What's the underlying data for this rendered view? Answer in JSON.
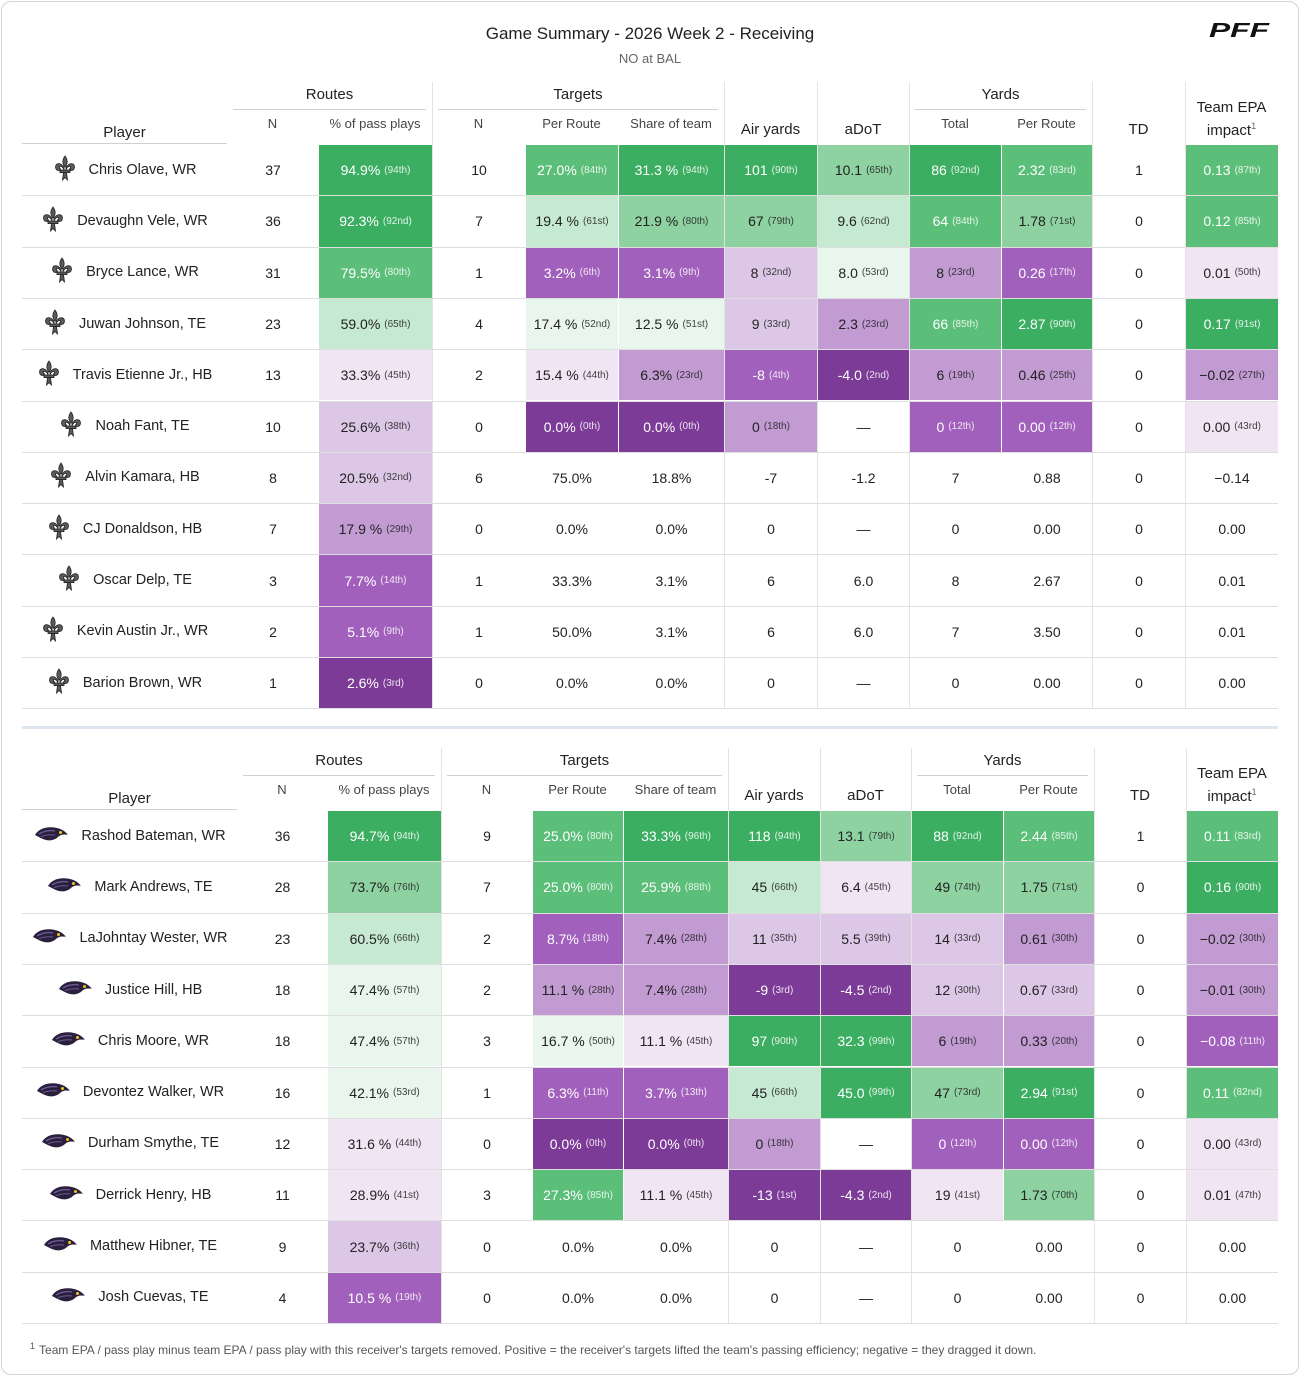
{
  "header": {
    "title": "Game Summary - 2026 Week 2 - Receiving",
    "subtitle": "NO at BAL",
    "logo_text": "PFF"
  },
  "columns": {
    "player": "Player",
    "routes_group": "Routes",
    "targets_group": "Targets",
    "yards_group": "Yards",
    "n": "N",
    "pct_pass_plays": "% of pass plays",
    "per_route": "Per Route",
    "share_of_team": "Share of team",
    "air_yards": "Air yards",
    "adot": "aDoT",
    "total": "Total",
    "td": "TD",
    "team_epa_line1": "Team EPA",
    "team_epa_line2": "impact",
    "footnote_mark": "1"
  },
  "colors": {
    "g5": "#3cae62",
    "g4": "#5bbe79",
    "g3": "#8ed2a1",
    "g2": "#c6e9d1",
    "g1": "#e9f6ed",
    "p1": "#efe5f3",
    "p2": "#dcc8e6",
    "p3": "#c29bd3",
    "p4": "#a160bb",
    "p5": "#7c3b97"
  },
  "teams": [
    {
      "logo": "fleur-de-lis-icon",
      "rows": [
        {
          "player": "Chris Olave, WR",
          "routes_n": "37",
          "routes_pct": "94.9%",
          "routes_pct_rank": "(94th)",
          "routes_pct_color": "g5",
          "targets_n": "10",
          "per_route": "27.0%",
          "per_route_rank": "(84th)",
          "per_route_color": "g4",
          "share": "31.3 %",
          "share_rank": "(94th)",
          "share_color": "g5",
          "air": "101",
          "air_rank": "(90th)",
          "air_color": "g5",
          "adot": "10.1",
          "adot_rank": "(65th)",
          "adot_color": "g3",
          "yds": "86",
          "yds_rank": "(92nd)",
          "yds_color": "g5",
          "ypr": "2.32",
          "ypr_rank": "(83rd)",
          "ypr_color": "g4",
          "td": "1",
          "epa": "0.13",
          "epa_rank": "(87th)",
          "epa_color": "g4"
        },
        {
          "player": "Devaughn Vele, WR",
          "routes_n": "36",
          "routes_pct": "92.3%",
          "routes_pct_rank": "(92nd)",
          "routes_pct_color": "g5",
          "targets_n": "7",
          "per_route": "19.4 %",
          "per_route_rank": "(61st)",
          "per_route_color": "g2",
          "share": "21.9 %",
          "share_rank": "(80th)",
          "share_color": "g3",
          "air": "67",
          "air_rank": "(79th)",
          "air_color": "g3",
          "adot": "9.6",
          "adot_rank": "(62nd)",
          "adot_color": "g2",
          "yds": "64",
          "yds_rank": "(84th)",
          "yds_color": "g4",
          "ypr": "1.78",
          "ypr_rank": "(71st)",
          "ypr_color": "g3",
          "td": "0",
          "epa": "0.12",
          "epa_rank": "(85th)",
          "epa_color": "g4"
        },
        {
          "player": "Bryce Lance, WR",
          "routes_n": "31",
          "routes_pct": "79.5%",
          "routes_pct_rank": "(80th)",
          "routes_pct_color": "g4",
          "targets_n": "1",
          "per_route": "3.2%",
          "per_route_rank": "(6th)",
          "per_route_color": "p4",
          "share": "3.1%",
          "share_rank": "(9th)",
          "share_color": "p4",
          "air": "8",
          "air_rank": "(32nd)",
          "air_color": "p2",
          "adot": "8.0",
          "adot_rank": "(53rd)",
          "adot_color": "g1",
          "yds": "8",
          "yds_rank": "(23rd)",
          "yds_color": "p3",
          "ypr": "0.26",
          "ypr_rank": "(17th)",
          "ypr_color": "p4",
          "td": "0",
          "epa": "0.01",
          "epa_rank": "(50th)",
          "epa_color": "p1"
        },
        {
          "player": "Juwan Johnson, TE",
          "routes_n": "23",
          "routes_pct": "59.0%",
          "routes_pct_rank": "(65th)",
          "routes_pct_color": "g2",
          "targets_n": "4",
          "per_route": "17.4 %",
          "per_route_rank": "(52nd)",
          "per_route_color": "g1",
          "share": "12.5 %",
          "share_rank": "(51st)",
          "share_color": "g1",
          "air": "9",
          "air_rank": "(33rd)",
          "air_color": "p2",
          "adot": "2.3",
          "adot_rank": "(23rd)",
          "adot_color": "p3",
          "yds": "66",
          "yds_rank": "(85th)",
          "yds_color": "g4",
          "ypr": "2.87",
          "ypr_rank": "(90th)",
          "ypr_color": "g5",
          "td": "0",
          "epa": "0.17",
          "epa_rank": "(91st)",
          "epa_color": "g5"
        },
        {
          "player": "Travis Etienne Jr., HB",
          "routes_n": "13",
          "routes_pct": "33.3%",
          "routes_pct_rank": "(45th)",
          "routes_pct_color": "p1",
          "targets_n": "2",
          "per_route": "15.4 %",
          "per_route_rank": "(44th)",
          "per_route_color": "p1",
          "share": "6.3%",
          "share_rank": "(23rd)",
          "share_color": "p3",
          "air": "-8",
          "air_rank": "(4th)",
          "air_color": "p4",
          "adot": "-4.0",
          "adot_rank": "(2nd)",
          "adot_color": "p5",
          "yds": "6",
          "yds_rank": "(19th)",
          "yds_color": "p3",
          "ypr": "0.46",
          "ypr_rank": "(25th)",
          "ypr_color": "p3",
          "td": "0",
          "epa": "−0.02",
          "epa_rank": "(27th)",
          "epa_color": "p3"
        },
        {
          "player": "Noah Fant, TE",
          "routes_n": "10",
          "routes_pct": "25.6%",
          "routes_pct_rank": "(38th)",
          "routes_pct_color": "p2",
          "targets_n": "0",
          "per_route": "0.0%",
          "per_route_rank": "(0th)",
          "per_route_color": "p5",
          "share": "0.0%",
          "share_rank": "(0th)",
          "share_color": "p5",
          "air": "0",
          "air_rank": "(18th)",
          "air_color": "p3",
          "adot": "—",
          "adot_rank": "",
          "adot_color": "",
          "yds": "0",
          "yds_rank": "(12th)",
          "yds_color": "p4",
          "ypr": "0.00",
          "ypr_rank": "(12th)",
          "ypr_color": "p4",
          "td": "0",
          "epa": "0.00",
          "epa_rank": "(43rd)",
          "epa_color": "p1"
        },
        {
          "player": "Alvin Kamara, HB",
          "routes_n": "8",
          "routes_pct": "20.5%",
          "routes_pct_rank": "(32nd)",
          "routes_pct_color": "p2",
          "targets_n": "6",
          "per_route": "75.0%",
          "per_route_rank": "",
          "per_route_color": "",
          "share": "18.8%",
          "share_rank": "",
          "share_color": "",
          "air": "-7",
          "air_rank": "",
          "air_color": "",
          "adot": "-1.2",
          "adot_rank": "",
          "adot_color": "",
          "yds": "7",
          "yds_rank": "",
          "yds_color": "",
          "ypr": "0.88",
          "ypr_rank": "",
          "ypr_color": "",
          "td": "0",
          "epa": "−0.14",
          "epa_rank": "",
          "epa_color": ""
        },
        {
          "player": "CJ Donaldson, HB",
          "routes_n": "7",
          "routes_pct": "17.9 %",
          "routes_pct_rank": "(29th)",
          "routes_pct_color": "p3",
          "targets_n": "0",
          "per_route": "0.0%",
          "per_route_rank": "",
          "per_route_color": "",
          "share": "0.0%",
          "share_rank": "",
          "share_color": "",
          "air": "0",
          "air_rank": "",
          "air_color": "",
          "adot": "—",
          "adot_rank": "",
          "adot_color": "",
          "yds": "0",
          "yds_rank": "",
          "yds_color": "",
          "ypr": "0.00",
          "ypr_rank": "",
          "ypr_color": "",
          "td": "0",
          "epa": "0.00",
          "epa_rank": "",
          "epa_color": ""
        },
        {
          "player": "Oscar Delp, TE",
          "routes_n": "3",
          "routes_pct": "7.7%",
          "routes_pct_rank": "(14th)",
          "routes_pct_color": "p4",
          "targets_n": "1",
          "per_route": "33.3%",
          "per_route_rank": "",
          "per_route_color": "",
          "share": "3.1%",
          "share_rank": "",
          "share_color": "",
          "air": "6",
          "air_rank": "",
          "air_color": "",
          "adot": "6.0",
          "adot_rank": "",
          "adot_color": "",
          "yds": "8",
          "yds_rank": "",
          "yds_color": "",
          "ypr": "2.67",
          "ypr_rank": "",
          "ypr_color": "",
          "td": "0",
          "epa": "0.01",
          "epa_rank": "",
          "epa_color": ""
        },
        {
          "player": "Kevin Austin Jr., WR",
          "routes_n": "2",
          "routes_pct": "5.1%",
          "routes_pct_rank": "(9th)",
          "routes_pct_color": "p4",
          "targets_n": "1",
          "per_route": "50.0%",
          "per_route_rank": "",
          "per_route_color": "",
          "share": "3.1%",
          "share_rank": "",
          "share_color": "",
          "air": "6",
          "air_rank": "",
          "air_color": "",
          "adot": "6.0",
          "adot_rank": "",
          "adot_color": "",
          "yds": "7",
          "yds_rank": "",
          "yds_color": "",
          "ypr": "3.50",
          "ypr_rank": "",
          "ypr_color": "",
          "td": "0",
          "epa": "0.01",
          "epa_rank": "",
          "epa_color": ""
        },
        {
          "player": "Barion Brown, WR",
          "routes_n": "1",
          "routes_pct": "2.6%",
          "routes_pct_rank": "(3rd)",
          "routes_pct_color": "p5",
          "targets_n": "0",
          "per_route": "0.0%",
          "per_route_rank": "",
          "per_route_color": "",
          "share": "0.0%",
          "share_rank": "",
          "share_color": "",
          "air": "0",
          "air_rank": "",
          "air_color": "",
          "adot": "—",
          "adot_rank": "",
          "adot_color": "",
          "yds": "0",
          "yds_rank": "",
          "yds_color": "",
          "ypr": "0.00",
          "ypr_rank": "",
          "ypr_color": "",
          "td": "0",
          "epa": "0.00",
          "epa_rank": "",
          "epa_color": ""
        }
      ]
    },
    {
      "logo": "raven-head-icon",
      "rows": [
        {
          "player": "Rashod Bateman, WR",
          "routes_n": "36",
          "routes_pct": "94.7%",
          "routes_pct_rank": "(94th)",
          "routes_pct_color": "g5",
          "targets_n": "9",
          "per_route": "25.0%",
          "per_route_rank": "(80th)",
          "per_route_color": "g4",
          "share": "33.3%",
          "share_rank": "(96th)",
          "share_color": "g5",
          "air": "118",
          "air_rank": "(94th)",
          "air_color": "g5",
          "adot": "13.1",
          "adot_rank": "(79th)",
          "adot_color": "g3",
          "yds": "88",
          "yds_rank": "(92nd)",
          "yds_color": "g5",
          "ypr": "2.44",
          "ypr_rank": "(85th)",
          "ypr_color": "g4",
          "td": "1",
          "epa": "0.11",
          "epa_rank": "(83rd)",
          "epa_color": "g4"
        },
        {
          "player": "Mark Andrews, TE",
          "routes_n": "28",
          "routes_pct": "73.7%",
          "routes_pct_rank": "(76th)",
          "routes_pct_color": "g3",
          "targets_n": "7",
          "per_route": "25.0%",
          "per_route_rank": "(80th)",
          "per_route_color": "g4",
          "share": "25.9%",
          "share_rank": "(88th)",
          "share_color": "g4",
          "air": "45",
          "air_rank": "(66th)",
          "air_color": "g2",
          "adot": "6.4",
          "adot_rank": "(45th)",
          "adot_color": "p1",
          "yds": "49",
          "yds_rank": "(74th)",
          "yds_color": "g3",
          "ypr": "1.75",
          "ypr_rank": "(71st)",
          "ypr_color": "g3",
          "td": "0",
          "epa": "0.16",
          "epa_rank": "(90th)",
          "epa_color": "g5"
        },
        {
          "player": "LaJohntay Wester, WR",
          "routes_n": "23",
          "routes_pct": "60.5%",
          "routes_pct_rank": "(66th)",
          "routes_pct_color": "g2",
          "targets_n": "2",
          "per_route": "8.7%",
          "per_route_rank": "(18th)",
          "per_route_color": "p4",
          "share": "7.4%",
          "share_rank": "(28th)",
          "share_color": "p3",
          "air": "11",
          "air_rank": "(35th)",
          "air_color": "p2",
          "adot": "5.5",
          "adot_rank": "(39th)",
          "adot_color": "p2",
          "yds": "14",
          "yds_rank": "(33rd)",
          "yds_color": "p2",
          "ypr": "0.61",
          "ypr_rank": "(30th)",
          "ypr_color": "p3",
          "td": "0",
          "epa": "−0.02",
          "epa_rank": "(30th)",
          "epa_color": "p3"
        },
        {
          "player": "Justice Hill, HB",
          "routes_n": "18",
          "routes_pct": "47.4%",
          "routes_pct_rank": "(57th)",
          "routes_pct_color": "g1",
          "targets_n": "2",
          "per_route": "11.1 %",
          "per_route_rank": "(28th)",
          "per_route_color": "p3",
          "share": "7.4%",
          "share_rank": "(28th)",
          "share_color": "p3",
          "air": "-9",
          "air_rank": "(3rd)",
          "air_color": "p5",
          "adot": "-4.5",
          "adot_rank": "(2nd)",
          "adot_color": "p5",
          "yds": "12",
          "yds_rank": "(30th)",
          "yds_color": "p2",
          "ypr": "0.67",
          "ypr_rank": "(33rd)",
          "ypr_color": "p2",
          "td": "0",
          "epa": "−0.01",
          "epa_rank": "(30th)",
          "epa_color": "p3"
        },
        {
          "player": "Chris Moore, WR",
          "routes_n": "18",
          "routes_pct": "47.4%",
          "routes_pct_rank": "(57th)",
          "routes_pct_color": "g1",
          "targets_n": "3",
          "per_route": "16.7 %",
          "per_route_rank": "(50th)",
          "per_route_color": "g1",
          "share": "11.1 %",
          "share_rank": "(45th)",
          "share_color": "p1",
          "air": "97",
          "air_rank": "(90th)",
          "air_color": "g5",
          "adot": "32.3",
          "adot_rank": "(99th)",
          "adot_color": "g5",
          "yds": "6",
          "yds_rank": "(19th)",
          "yds_color": "p3",
          "ypr": "0.33",
          "ypr_rank": "(20th)",
          "ypr_color": "p3",
          "td": "0",
          "epa": "−0.08",
          "epa_rank": "(11th)",
          "epa_color": "p4"
        },
        {
          "player": "Devontez Walker, WR",
          "routes_n": "16",
          "routes_pct": "42.1%",
          "routes_pct_rank": "(53rd)",
          "routes_pct_color": "g1",
          "targets_n": "1",
          "per_route": "6.3%",
          "per_route_rank": "(11th)",
          "per_route_color": "p4",
          "share": "3.7%",
          "share_rank": "(13th)",
          "share_color": "p4",
          "air": "45",
          "air_rank": "(66th)",
          "air_color": "g2",
          "adot": "45.0",
          "adot_rank": "(99th)",
          "adot_color": "g5",
          "yds": "47",
          "yds_rank": "(73rd)",
          "yds_color": "g3",
          "ypr": "2.94",
          "ypr_rank": "(91st)",
          "ypr_color": "g5",
          "td": "0",
          "epa": "0.11",
          "epa_rank": "(82nd)",
          "epa_color": "g4"
        },
        {
          "player": "Durham Smythe, TE",
          "routes_n": "12",
          "routes_pct": "31.6 %",
          "routes_pct_rank": "(44th)",
          "routes_pct_color": "p1",
          "targets_n": "0",
          "per_route": "0.0%",
          "per_route_rank": "(0th)",
          "per_route_color": "p5",
          "share": "0.0%",
          "share_rank": "(0th)",
          "share_color": "p5",
          "air": "0",
          "air_rank": "(18th)",
          "air_color": "p3",
          "adot": "—",
          "adot_rank": "",
          "adot_color": "",
          "yds": "0",
          "yds_rank": "(12th)",
          "yds_color": "p4",
          "ypr": "0.00",
          "ypr_rank": "(12th)",
          "ypr_color": "p4",
          "td": "0",
          "epa": "0.00",
          "epa_rank": "(43rd)",
          "epa_color": "p1"
        },
        {
          "player": "Derrick Henry, HB",
          "routes_n": "11",
          "routes_pct": "28.9%",
          "routes_pct_rank": "(41st)",
          "routes_pct_color": "p1",
          "targets_n": "3",
          "per_route": "27.3%",
          "per_route_rank": "(85th)",
          "per_route_color": "g4",
          "share": "11.1 %",
          "share_rank": "(45th)",
          "share_color": "p1",
          "air": "-13",
          "air_rank": "(1st)",
          "air_color": "p5",
          "adot": "-4.3",
          "adot_rank": "(2nd)",
          "adot_color": "p5",
          "yds": "19",
          "yds_rank": "(41st)",
          "yds_color": "p1",
          "ypr": "1.73",
          "ypr_rank": "(70th)",
          "ypr_color": "g3",
          "td": "0",
          "epa": "0.01",
          "epa_rank": "(47th)",
          "epa_color": "p1"
        },
        {
          "player": "Matthew Hibner, TE",
          "routes_n": "9",
          "routes_pct": "23.7%",
          "routes_pct_rank": "(36th)",
          "routes_pct_color": "p2",
          "targets_n": "0",
          "per_route": "0.0%",
          "per_route_rank": "",
          "per_route_color": "",
          "share": "0.0%",
          "share_rank": "",
          "share_color": "",
          "air": "0",
          "air_rank": "",
          "air_color": "",
          "adot": "—",
          "adot_rank": "",
          "adot_color": "",
          "yds": "0",
          "yds_rank": "",
          "yds_color": "",
          "ypr": "0.00",
          "ypr_rank": "",
          "ypr_color": "",
          "td": "0",
          "epa": "0.00",
          "epa_rank": "",
          "epa_color": ""
        },
        {
          "player": "Josh Cuevas, TE",
          "routes_n": "4",
          "routes_pct": "10.5 %",
          "routes_pct_rank": "(19th)",
          "routes_pct_color": "p4",
          "targets_n": "0",
          "per_route": "0.0%",
          "per_route_rank": "",
          "per_route_color": "",
          "share": "0.0%",
          "share_rank": "",
          "share_color": "",
          "air": "0",
          "air_rank": "",
          "air_color": "",
          "adot": "—",
          "adot_rank": "",
          "adot_color": "",
          "yds": "0",
          "yds_rank": "",
          "yds_color": "",
          "ypr": "0.00",
          "ypr_rank": "",
          "ypr_color": "",
          "td": "0",
          "epa": "0.00",
          "epa_rank": "",
          "epa_color": ""
        }
      ]
    }
  ],
  "footnote": {
    "mark": "1",
    "text": "Team EPA / pass play minus team EPA / pass play with this receiver's targets removed. Positive = the receiver's targets lifted the team's passing efficiency; negative = they dragged it down."
  }
}
